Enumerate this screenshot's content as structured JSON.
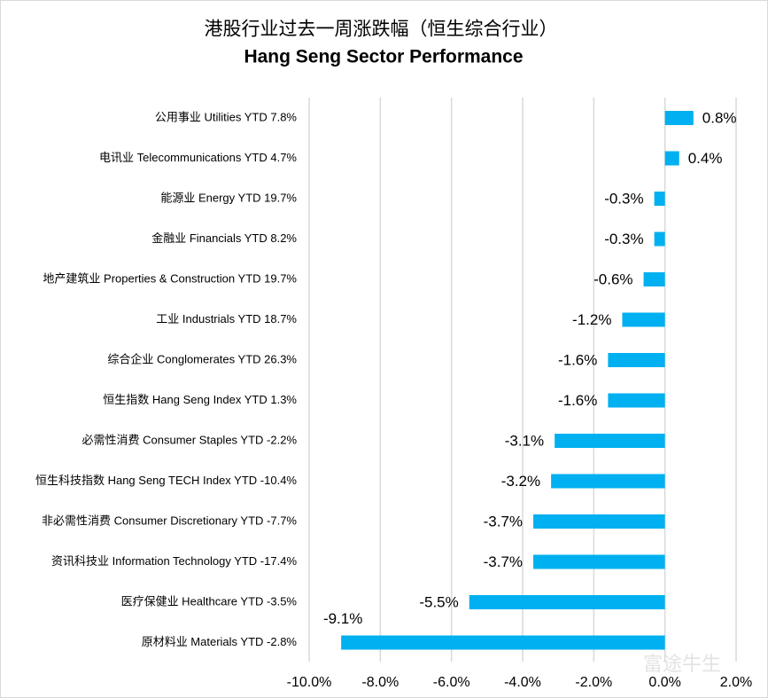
{
  "chart_data": {
    "type": "barh",
    "title": "港股行业过去一周涨跌幅（恒生综合行业）",
    "subtitle": "Hang Seng Sector Performance",
    "watermark": "富途牛生",
    "categories": [
      "公用事业 Utilities YTD 7.8%",
      "电讯业 Telecommunications YTD 4.7%",
      "能源业 Energy YTD 19.7%",
      "金融业 Financials YTD 8.2%",
      "地产建筑业 Properties & Construction YTD 19.7%",
      "工业 Industrials YTD 18.7%",
      "综合企业 Conglomerates YTD 26.3%",
      "恒生指数 Hang Seng Index YTD 1.3%",
      "必需性消费 Consumer Staples YTD -2.2%",
      "恒生科技指数 Hang Seng TECH Index YTD -10.4%",
      "非必需性消费 Consumer Discretionary YTD -7.7%",
      "资讯科技业 Information Technology YTD -17.4%",
      "医疗保健业 Healthcare YTD -3.5%",
      "原材料业 Materials YTD -2.8%"
    ],
    "values": [
      0.8,
      0.4,
      -0.3,
      -0.3,
      -0.6,
      -1.2,
      -1.6,
      -1.6,
      -3.1,
      -3.2,
      -3.7,
      -3.7,
      -5.5,
      -9.1
    ],
    "value_labels": [
      "0.8%",
      "0.4%",
      "-0.3%",
      "-0.3%",
      "-0.6%",
      "-1.2%",
      "-1.6%",
      "-1.6%",
      "-3.1%",
      "-3.2%",
      "-3.7%",
      "-3.7%",
      "-5.5%",
      "-9.1%"
    ],
    "color": "#00b0f0",
    "xlim": [
      -10,
      2
    ],
    "xticks": [
      {
        "value": -10,
        "label": "-10.0%"
      },
      {
        "value": -8,
        "label": "-8.0%"
      },
      {
        "value": -6,
        "label": "-6.0%"
      },
      {
        "value": -4,
        "label": "-4.0%"
      },
      {
        "value": -2,
        "label": "-2.0%"
      },
      {
        "value": 0,
        "label": "0.0%"
      },
      {
        "value": 2,
        "label": "2.0%"
      }
    ],
    "grid": true
  }
}
